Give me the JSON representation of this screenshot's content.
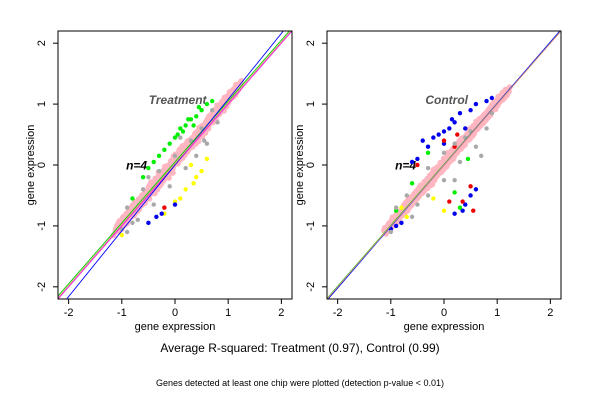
{
  "caption": "Average R-squared: Treatment (0.97), Control (0.99)",
  "subcaption": "Genes detected at least one chip were plotted (detection p-value < 0.01)",
  "colors": {
    "main": "#ffb6c1",
    "gray": "#a9a9a9",
    "green": "#00ee00",
    "yellow": "#ffff00",
    "blue": "#0000ee",
    "red": "#ee0000",
    "frame": "#000000",
    "panel_title": "#555555"
  },
  "chart_data": [
    {
      "type": "scatter",
      "title": "Treatment",
      "annotation": "n=4",
      "xlabel": "gene expression",
      "ylabel": "gene expression",
      "xlim": [
        -2.2,
        2.2
      ],
      "ylim": [
        -2.2,
        2.2
      ],
      "xticks": [
        "-2",
        "-1",
        "0",
        "1",
        "2"
      ],
      "yticks": [
        "-2",
        "-1",
        "0",
        "1",
        "2"
      ],
      "grid": false,
      "lines": [
        {
          "color": "#ff00ff",
          "slope": 1.0,
          "intercept": 0.0
        },
        {
          "color": "#00cc00",
          "slope": 1.0,
          "intercept": 0.05
        },
        {
          "color": "#0000ff",
          "slope": 1.08,
          "intercept": 0.0
        },
        {
          "color": "#d2a06e",
          "slope": 1.0,
          "intercept": 0.02
        }
      ],
      "series": [
        {
          "color": "green",
          "points": [
            [
              -0.6,
              -0.2
            ],
            [
              -0.4,
              0.05
            ],
            [
              -0.2,
              0.25
            ],
            [
              0.0,
              0.45
            ],
            [
              0.1,
              0.6
            ],
            [
              0.2,
              0.65
            ],
            [
              0.3,
              0.75
            ],
            [
              0.4,
              0.8
            ],
            [
              0.5,
              0.9
            ],
            [
              0.6,
              1.0
            ],
            [
              -0.8,
              -0.55
            ],
            [
              -0.3,
              0.15
            ],
            [
              0.15,
              0.55
            ],
            [
              0.35,
              0.65
            ],
            [
              -0.1,
              0.35
            ],
            [
              0.45,
              0.95
            ],
            [
              0.7,
              1.05
            ],
            [
              0.25,
              0.75
            ],
            [
              -0.5,
              -0.05
            ],
            [
              0.05,
              0.5
            ]
          ]
        },
        {
          "color": "yellow",
          "points": [
            [
              -0.2,
              -0.8
            ],
            [
              0.0,
              -0.6
            ],
            [
              0.2,
              -0.4
            ],
            [
              0.4,
              -0.2
            ],
            [
              0.35,
              -0.3
            ],
            [
              0.5,
              -0.1
            ],
            [
              -1.0,
              -1.15
            ],
            [
              0.3,
              0.0
            ],
            [
              0.6,
              0.1
            ],
            [
              0.1,
              -0.55
            ]
          ]
        },
        {
          "color": "blue",
          "points": [
            [
              -0.5,
              -0.95
            ],
            [
              -0.35,
              -0.85
            ],
            [
              0.0,
              -0.65
            ],
            [
              -0.25,
              -0.8
            ]
          ]
        },
        {
          "color": "red",
          "points": [
            [
              -0.2,
              -0.7
            ]
          ]
        },
        {
          "color": "gray",
          "points": [
            [
              -0.9,
              -0.7
            ],
            [
              -0.6,
              -0.4
            ],
            [
              -0.3,
              -0.1
            ],
            [
              0.0,
              0.15
            ],
            [
              0.3,
              0.4
            ],
            [
              0.5,
              0.6
            ],
            [
              -0.7,
              -0.9
            ],
            [
              -0.4,
              -0.65
            ],
            [
              -0.1,
              -0.35
            ],
            [
              0.2,
              -0.05
            ],
            [
              0.4,
              0.15
            ],
            [
              0.6,
              0.35
            ],
            [
              -1.0,
              -1.05
            ],
            [
              -0.8,
              -0.95
            ],
            [
              0.8,
              0.7
            ],
            [
              0.1,
              0.45
            ],
            [
              -0.5,
              -0.2
            ],
            [
              0.7,
              0.9
            ],
            [
              -0.9,
              -1.1
            ],
            [
              0.55,
              0.4
            ]
          ]
        }
      ]
    },
    {
      "type": "scatter",
      "title": "Control",
      "annotation": "n=4",
      "xlabel": "gene expression",
      "ylabel": "gene expression",
      "xlim": [
        -2.2,
        2.2
      ],
      "ylim": [
        -2.2,
        2.2
      ],
      "xticks": [
        "-2",
        "-1",
        "0",
        "1",
        "2"
      ],
      "yticks": [
        "-2",
        "-1",
        "0",
        "1",
        "2"
      ],
      "grid": false,
      "lines": [
        {
          "color": "#ff00ff",
          "slope": 1.0,
          "intercept": 0.0
        },
        {
          "color": "#00cc00",
          "slope": 1.0,
          "intercept": 0.01
        },
        {
          "color": "#0000ff",
          "slope": 1.01,
          "intercept": 0.0
        },
        {
          "color": "#d2a06e",
          "slope": 1.0,
          "intercept": 0.0
        }
      ],
      "series": [
        {
          "color": "blue",
          "points": [
            [
              -0.3,
              0.3
            ],
            [
              -0.2,
              0.45
            ],
            [
              -0.1,
              0.5
            ],
            [
              0.0,
              0.55
            ],
            [
              0.1,
              0.6
            ],
            [
              0.2,
              0.7
            ],
            [
              0.3,
              0.85
            ],
            [
              0.5,
              0.9
            ],
            [
              0.6,
              1.0
            ],
            [
              0.8,
              1.05
            ],
            [
              -0.5,
              0.1
            ],
            [
              -0.6,
              0.05
            ],
            [
              0.4,
              0.6
            ],
            [
              0.0,
              0.35
            ],
            [
              0.2,
              -0.8
            ],
            [
              0.4,
              -0.65
            ],
            [
              0.5,
              -0.5
            ],
            [
              -0.8,
              -0.95
            ],
            [
              -1.0,
              -1.05
            ],
            [
              0.6,
              -0.4
            ],
            [
              0.9,
              1.1
            ],
            [
              -0.4,
              0.4
            ],
            [
              0.15,
              0.75
            ],
            [
              0.35,
              -0.75
            ],
            [
              -0.9,
              -1.0
            ]
          ]
        },
        {
          "color": "red",
          "points": [
            [
              0.0,
              0.4
            ],
            [
              0.2,
              0.3
            ],
            [
              0.35,
              -0.6
            ],
            [
              0.5,
              -0.35
            ],
            [
              -0.5,
              0.0
            ],
            [
              0.1,
              -0.6
            ],
            [
              0.55,
              -0.75
            ],
            [
              0.25,
              0.5
            ]
          ]
        },
        {
          "color": "green",
          "points": [
            [
              -0.3,
              0.2
            ],
            [
              0.2,
              -0.45
            ],
            [
              -0.9,
              -0.75
            ],
            [
              0.45,
              0.1
            ],
            [
              0.3,
              -0.7
            ],
            [
              -0.6,
              -0.3
            ]
          ]
        },
        {
          "color": "yellow",
          "points": [
            [
              -0.8,
              -0.7
            ],
            [
              -0.7,
              -0.85
            ],
            [
              -0.2,
              -0.55
            ],
            [
              0.0,
              -0.75
            ]
          ]
        },
        {
          "color": "gray",
          "points": [
            [
              -0.9,
              -0.7
            ],
            [
              -0.7,
              -0.5
            ],
            [
              -0.3,
              -0.05
            ],
            [
              0.0,
              0.2
            ],
            [
              0.2,
              0.35
            ],
            [
              0.5,
              0.55
            ],
            [
              -0.6,
              -0.85
            ],
            [
              -0.3,
              -0.5
            ],
            [
              0.0,
              -0.25
            ],
            [
              0.3,
              0.05
            ],
            [
              0.6,
              0.3
            ],
            [
              0.7,
              0.15
            ],
            [
              0.4,
              0.45
            ],
            [
              0.8,
              0.6
            ],
            [
              -1.0,
              -1.1
            ],
            [
              0.9,
              0.85
            ],
            [
              0.2,
              -0.25
            ],
            [
              -0.5,
              -0.65
            ]
          ]
        }
      ]
    }
  ]
}
